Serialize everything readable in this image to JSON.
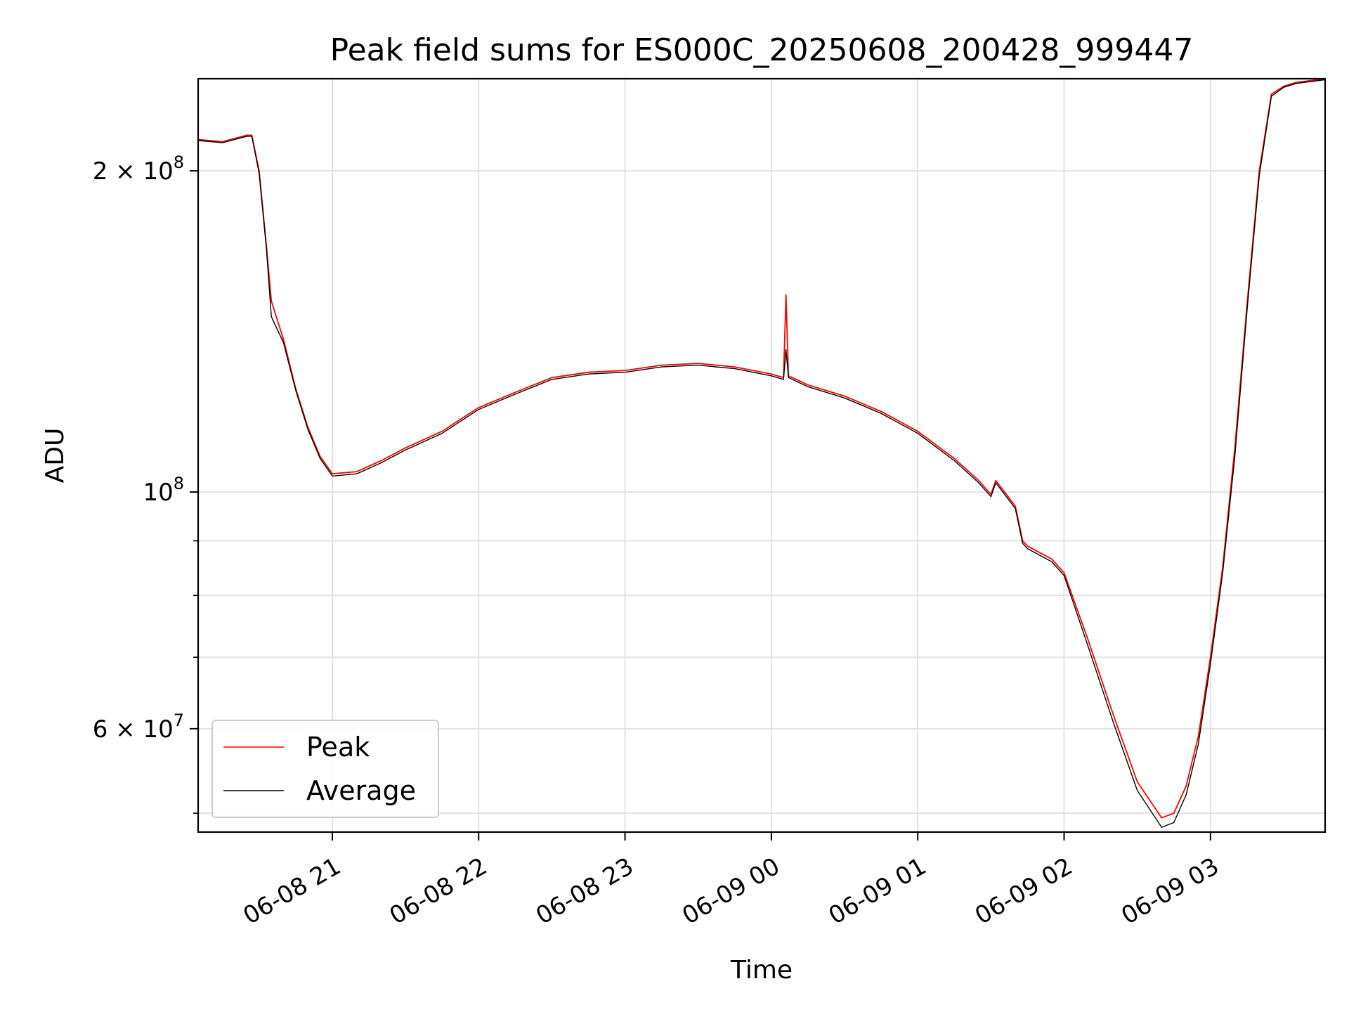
{
  "chart_data": {
    "type": "line",
    "title": "Peak field sums for ES000C_20250608_200428_999447",
    "xlabel": "Time",
    "ylabel": "ADU",
    "y_scale": "log",
    "ylim": [
      48000000,
      244000000
    ],
    "xlim": [
      "2025-06-08 20:05",
      "2025-06-09 03:47"
    ],
    "grid": true,
    "legend_position": "lower-left",
    "x_ticks": [
      {
        "value": "2025-06-08 21:00",
        "label": "06-08 21"
      },
      {
        "value": "2025-06-08 22:00",
        "label": "06-08 22"
      },
      {
        "value": "2025-06-08 23:00",
        "label": "06-08 23"
      },
      {
        "value": "2025-06-09 00:00",
        "label": "06-09 00"
      },
      {
        "value": "2025-06-09 01:00",
        "label": "06-09 01"
      },
      {
        "value": "2025-06-09 02:00",
        "label": "06-09 02"
      },
      {
        "value": "2025-06-09 03:00",
        "label": "06-09 03"
      }
    ],
    "y_ticks_major": [
      {
        "value": 60000000,
        "mantissa": "6",
        "exponent": "7",
        "label": "6 × 10^7"
      },
      {
        "value": 100000000,
        "mantissa": "",
        "exponent": "8",
        "label": "10^8"
      },
      {
        "value": 200000000,
        "mantissa": "2",
        "exponent": "8",
        "label": "2 × 10^8"
      }
    ],
    "y_ticks_minor": [
      50000000,
      70000000,
      80000000,
      90000000
    ],
    "series": [
      {
        "name": "Peak",
        "color": "#ff0000",
        "x": [
          "2025-06-08 20:05",
          "2025-06-08 20:15",
          "2025-06-08 20:25",
          "2025-06-08 20:27",
          "2025-06-08 20:30",
          "2025-06-08 20:33",
          "2025-06-08 20:35",
          "2025-06-08 20:40",
          "2025-06-08 20:45",
          "2025-06-08 20:50",
          "2025-06-08 20:55",
          "2025-06-08 21:00",
          "2025-06-08 21:10",
          "2025-06-08 21:20",
          "2025-06-08 21:30",
          "2025-06-08 21:45",
          "2025-06-08 22:00",
          "2025-06-08 22:15",
          "2025-06-08 22:30",
          "2025-06-08 22:45",
          "2025-06-08 23:00",
          "2025-06-08 23:15",
          "2025-06-08 23:30",
          "2025-06-08 23:45",
          "2025-06-09 00:00",
          "2025-06-09 00:05",
          "2025-06-09 00:06",
          "2025-06-09 00:07",
          "2025-06-09 00:15",
          "2025-06-09 00:30",
          "2025-06-09 00:45",
          "2025-06-09 01:00",
          "2025-06-09 01:15",
          "2025-06-09 01:25",
          "2025-06-09 01:30",
          "2025-06-09 01:32",
          "2025-06-09 01:40",
          "2025-06-09 01:43",
          "2025-06-09 01:45",
          "2025-06-09 01:55",
          "2025-06-09 02:00",
          "2025-06-09 02:10",
          "2025-06-09 02:20",
          "2025-06-09 02:30",
          "2025-06-09 02:40",
          "2025-06-09 02:45",
          "2025-06-09 02:50",
          "2025-06-09 02:55",
          "2025-06-09 03:00",
          "2025-06-09 03:05",
          "2025-06-09 03:10",
          "2025-06-09 03:15",
          "2025-06-09 03:20",
          "2025-06-09 03:25",
          "2025-06-09 03:30",
          "2025-06-09 03:35",
          "2025-06-09 03:47"
        ],
        "y": [
          214000000,
          213000000,
          216000000,
          216000000,
          200000000,
          170000000,
          151000000,
          139000000,
          125000000,
          115000000,
          108000000,
          104000000,
          104500000,
          107000000,
          110000000,
          114000000,
          120000000,
          124000000,
          128000000,
          129500000,
          130000000,
          131500000,
          132000000,
          131000000,
          129000000,
          128000000,
          153000000,
          128500000,
          126000000,
          123000000,
          119000000,
          114000000,
          107500000,
          102500000,
          99500000,
          102500000,
          97000000,
          90000000,
          89000000,
          86500000,
          84000000,
          72500000,
          62000000,
          53500000,
          49500000,
          50000000,
          53000000,
          59000000,
          70000000,
          85000000,
          110000000,
          150000000,
          200000000,
          236000000,
          240000000,
          242000000,
          244000000
        ]
      },
      {
        "name": "Average",
        "color": "#000000",
        "x": [
          "2025-06-08 20:05",
          "2025-06-08 20:15",
          "2025-06-08 20:25",
          "2025-06-08 20:27",
          "2025-06-08 20:30",
          "2025-06-08 20:33",
          "2025-06-08 20:35",
          "2025-06-08 20:40",
          "2025-06-08 20:45",
          "2025-06-08 20:50",
          "2025-06-08 20:55",
          "2025-06-08 21:00",
          "2025-06-08 21:10",
          "2025-06-08 21:20",
          "2025-06-08 21:30",
          "2025-06-08 21:45",
          "2025-06-08 22:00",
          "2025-06-08 22:15",
          "2025-06-08 22:30",
          "2025-06-08 22:45",
          "2025-06-08 23:00",
          "2025-06-08 23:15",
          "2025-06-08 23:30",
          "2025-06-08 23:45",
          "2025-06-09 00:00",
          "2025-06-09 00:05",
          "2025-06-09 00:06",
          "2025-06-09 00:07",
          "2025-06-09 00:15",
          "2025-06-09 00:30",
          "2025-06-09 00:45",
          "2025-06-09 01:00",
          "2025-06-09 01:15",
          "2025-06-09 01:25",
          "2025-06-09 01:30",
          "2025-06-09 01:32",
          "2025-06-09 01:40",
          "2025-06-09 01:43",
          "2025-06-09 01:45",
          "2025-06-09 01:55",
          "2025-06-09 02:00",
          "2025-06-09 02:10",
          "2025-06-09 02:20",
          "2025-06-09 02:30",
          "2025-06-09 02:40",
          "2025-06-09 02:45",
          "2025-06-09 02:50",
          "2025-06-09 02:55",
          "2025-06-09 03:00",
          "2025-06-09 03:05",
          "2025-06-09 03:10",
          "2025-06-09 03:15",
          "2025-06-09 03:20",
          "2025-06-09 03:25",
          "2025-06-09 03:30",
          "2025-06-09 03:35",
          "2025-06-09 03:47"
        ],
        "y": [
          213500000,
          212500000,
          215500000,
          215500000,
          199000000,
          169000000,
          146000000,
          138000000,
          124500000,
          114500000,
          107500000,
          103500000,
          104000000,
          106500000,
          109500000,
          113500000,
          119500000,
          123500000,
          127500000,
          129000000,
          129500000,
          131000000,
          131500000,
          130500000,
          128500000,
          127500000,
          136000000,
          128000000,
          125500000,
          122500000,
          118500000,
          113500000,
          107000000,
          102000000,
          99000000,
          102000000,
          96500000,
          89500000,
          88500000,
          86000000,
          83500000,
          71500000,
          61000000,
          52500000,
          48500000,
          49000000,
          52000000,
          58000000,
          69000000,
          84000000,
          108000000,
          148000000,
          198000000,
          235000000,
          239500000,
          241500000,
          243500000
        ]
      }
    ]
  }
}
